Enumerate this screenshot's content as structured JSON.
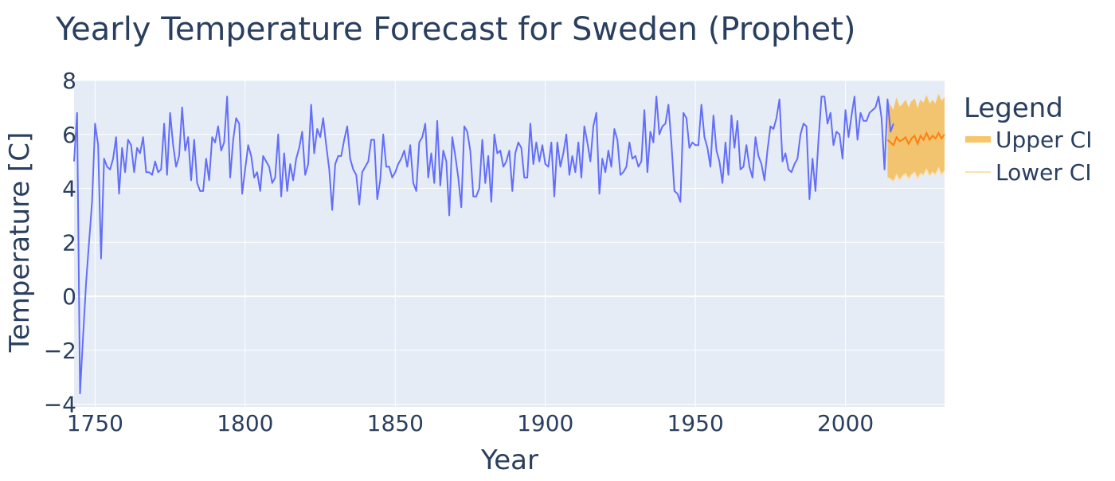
{
  "chart_data": {
    "type": "line",
    "title": "Yearly Temperature Forecast for Sweden (Prophet)",
    "xlabel": "Year",
    "ylabel": "Temperature [C]",
    "xlim": [
      1743,
      2033
    ],
    "ylim": [
      -4.1,
      8
    ],
    "x_ticks": [
      1750,
      1800,
      1850,
      1900,
      1950,
      2000
    ],
    "y_ticks": [
      -4,
      -2,
      0,
      2,
      4,
      6,
      8
    ],
    "y_tick_labels": [
      "−4",
      "−2",
      "0",
      "2",
      "4",
      "6",
      "8"
    ],
    "grid": true,
    "legend_title": "Legend",
    "legend_position": "right",
    "colors": {
      "observed": "#636efa",
      "forecast": "#ff7f0e",
      "band": "#f2c46f",
      "upper_ci_line": "#f7c66a",
      "lower_ci_line": "#fde1b0",
      "plot_bg": "#e5ecf6",
      "grid": "#ffffff",
      "text": "#2a3f5f"
    },
    "series": [
      {
        "values_start_year": 1743,
        "values": [
          5.0,
          6.8,
          -3.6,
          -1.5,
          0.5,
          2.0,
          3.5,
          6.4,
          5.6,
          1.4,
          5.1,
          4.8,
          4.7,
          5.1,
          5.9,
          3.8,
          5.5,
          4.6,
          5.8,
          5.6,
          4.6,
          5.5,
          5.3,
          5.9,
          4.6,
          4.6,
          4.5,
          5.0,
          4.6,
          4.7,
          6.4,
          4.5,
          6.8,
          5.6,
          4.8,
          5.2,
          7.0,
          5.4,
          5.9,
          4.3,
          5.8,
          4.2,
          3.9,
          3.9,
          5.1,
          4.3,
          5.9,
          5.7,
          6.3,
          5.4,
          5.7,
          7.4,
          4.4,
          5.8,
          6.6,
          6.4,
          3.8,
          4.7,
          5.6,
          5.2,
          4.4,
          4.6,
          3.9,
          5.2,
          5.0,
          4.8,
          4.2,
          4.4,
          6.0,
          3.7,
          5.3,
          3.9,
          4.9,
          4.3,
          5.1,
          5.5,
          6.1,
          4.5,
          4.9,
          7.1,
          5.3,
          6.2,
          5.9,
          6.6,
          5.6,
          4.7,
          3.2,
          4.9,
          5.2,
          5.2,
          5.8,
          6.3,
          5.1,
          4.7,
          4.5,
          3.4,
          4.6,
          4.8,
          5.0,
          5.8,
          5.8,
          3.6,
          4.3,
          6.0,
          4.8,
          4.8,
          4.4,
          4.6,
          4.9,
          5.1,
          5.4,
          4.8,
          5.6,
          4.2,
          3.9,
          5.7,
          5.9,
          6.4,
          4.4,
          5.3,
          4.2,
          6.5,
          4.1,
          5.4,
          5.0,
          3.0,
          5.9,
          5.2,
          4.4,
          3.3,
          6.3,
          6.1,
          5.4,
          3.7,
          3.7,
          4.0,
          5.8,
          4.2,
          5.2,
          3.5,
          6.0,
          5.3,
          5.4,
          4.8,
          5.0,
          5.4,
          3.9,
          5.3,
          5.7,
          5.5,
          4.4,
          4.4,
          6.4,
          4.9,
          5.7,
          5.0,
          5.6,
          4.9,
          4.8,
          5.7,
          3.7,
          5.7,
          4.8,
          5.3,
          6.0,
          4.5,
          5.2,
          4.6,
          5.7,
          4.4,
          6.3,
          5.7,
          5.0,
          6.3,
          6.8,
          3.8,
          5.1,
          4.6,
          5.4,
          4.8,
          6.2,
          5.8,
          4.5,
          4.6,
          4.8,
          5.7,
          5.1,
          5.2,
          4.8,
          5.0,
          6.9,
          4.6,
          6.1,
          5.7,
          7.4,
          6.0,
          6.3,
          6.4,
          7.1,
          5.7,
          3.9,
          3.8,
          3.5,
          6.8,
          6.6,
          5.5,
          5.7,
          5.6,
          5.6,
          7.1,
          5.9,
          5.5,
          4.8,
          6.7,
          5.4,
          5.0,
          4.2,
          5.7,
          4.5,
          6.7,
          5.5,
          6.5,
          4.7,
          4.8,
          5.6,
          4.8,
          4.4,
          5.9,
          5.2,
          4.9,
          4.3,
          5.4,
          6.3,
          6.2,
          6.6,
          7.3,
          5.0,
          5.3,
          4.7,
          4.6,
          4.9,
          5.1,
          6.0,
          6.4,
          6.3,
          3.6,
          5.1,
          3.9,
          5.8,
          7.4,
          7.4,
          6.4,
          6.8,
          5.6,
          6.1,
          6.0,
          5.1,
          6.9,
          5.9,
          6.7,
          7.4,
          5.8,
          6.8,
          6.5,
          6.5,
          6.8,
          6.9,
          7.0,
          7.4,
          6.6,
          4.7,
          7.3,
          6.1,
          6.4
        ]
      },
      {
        "name": "Upper CI",
        "values_start_year": 2014,
        "values": [
          7.2,
          7.05,
          6.85,
          7.3,
          7.0,
          7.1,
          7.25,
          6.95,
          7.2,
          7.3,
          6.9,
          7.25,
          7.15,
          7.4,
          7.1,
          7.25,
          7.1,
          7.45,
          7.2,
          7.35
        ]
      },
      {
        "name": "Lower CI",
        "values_start_year": 2014,
        "values": [
          4.4,
          4.35,
          4.25,
          4.5,
          4.3,
          4.45,
          4.55,
          4.35,
          4.5,
          4.6,
          4.35,
          4.55,
          4.5,
          4.7,
          4.45,
          4.6,
          4.5,
          4.75,
          4.5,
          4.65
        ]
      },
      {
        "values_start_year": 2014,
        "values": [
          5.8,
          5.7,
          5.6,
          5.9,
          5.75,
          5.8,
          5.9,
          5.65,
          5.85,
          5.95,
          5.65,
          5.95,
          5.8,
          6.05,
          5.8,
          5.95,
          5.85,
          6.05,
          5.85,
          6.0
        ]
      }
    ]
  }
}
